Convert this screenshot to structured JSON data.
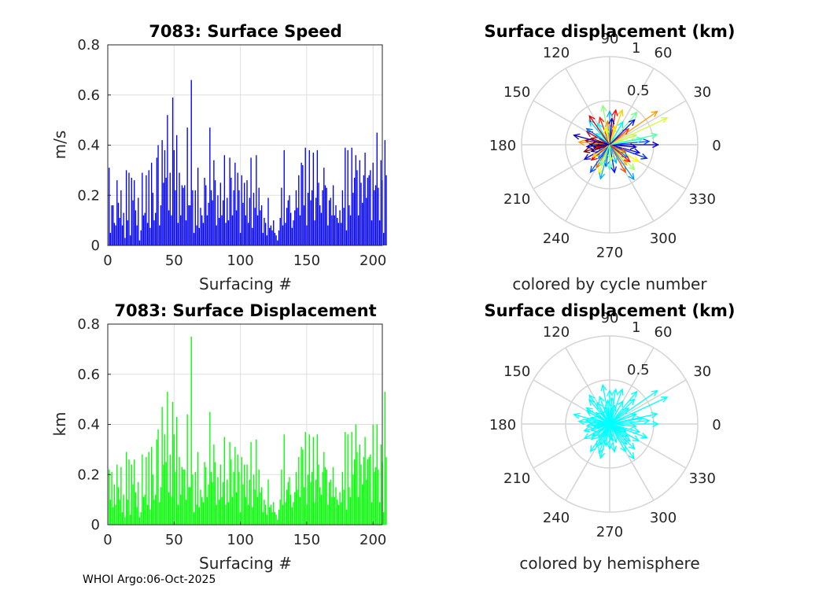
{
  "chart_data": [
    {
      "type": "bar",
      "title": "7083: Surface Speed",
      "xlabel": "Surfacing #",
      "ylabel": "m/s",
      "xlim": [
        0,
        207
      ],
      "ylim": [
        0,
        0.8
      ],
      "xticks": [
        "0",
        "50",
        "100",
        "150",
        "200"
      ],
      "yticks": [
        "0",
        "0.2",
        "0.4",
        "0.6",
        "0.8"
      ],
      "grid": true,
      "color": "#0000ff",
      "values": [
        0.31,
        0.05,
        0.16,
        0.16,
        0.09,
        0.08,
        0.26,
        0.17,
        0.11,
        0.22,
        0.08,
        0.13,
        0.03,
        0.3,
        0.1,
        0.29,
        0.04,
        0.27,
        0.18,
        0.26,
        0.14,
        0.08,
        0.19,
        0.02,
        0.06,
        0.29,
        0.12,
        0.13,
        0.28,
        0.09,
        0.3,
        0.07,
        0.33,
        0.21,
        0.1,
        0.13,
        0.35,
        0.4,
        0.08,
        0.16,
        0.42,
        0.25,
        0.38,
        0.27,
        0.52,
        0.14,
        0.29,
        0.12,
        0.59,
        0.38,
        0.22,
        0.44,
        0.09,
        0.29,
        0.12,
        0.24,
        0.23,
        0.24,
        0.1,
        0.47,
        0.16,
        0.16,
        0.66,
        0.22,
        0.05,
        0.22,
        0.08,
        0.31,
        0.07,
        0.15,
        0.12,
        0.09,
        0.27,
        0.24,
        0.12,
        0.17,
        0.47,
        0.22,
        0.18,
        0.34,
        0.26,
        0.08,
        0.2,
        0.11,
        0.25,
        0.12,
        0.18,
        0.36,
        0.09,
        0.19,
        0.1,
        0.35,
        0.27,
        0.12,
        0.22,
        0.33,
        0.14,
        0.29,
        0.22,
        0.05,
        0.28,
        0.17,
        0.25,
        0.12,
        0.26,
        0.09,
        0.19,
        0.35,
        0.07,
        0.21,
        0.15,
        0.36,
        0.12,
        0.23,
        0.14,
        0.16,
        0.05,
        0.11,
        0.09,
        0.04,
        0.19,
        0.07,
        0.08,
        0.06,
        0.1,
        0.05,
        0.04,
        0.02,
        0.06,
        0.11,
        0.23,
        0.08,
        0.38,
        0.09,
        0.15,
        0.18,
        0.2,
        0.13,
        0.07,
        0.1,
        0.14,
        0.22,
        0.15,
        0.28,
        0.12,
        0.33,
        0.32,
        0.16,
        0.39,
        0.08,
        0.21,
        0.38,
        0.18,
        0.22,
        0.37,
        0.1,
        0.19,
        0.38,
        0.25,
        0.16,
        0.13,
        0.22,
        0.31,
        0.24,
        0.23,
        0.08,
        0.18,
        0.19,
        0.12,
        0.24,
        0.12,
        0.16,
        0.11,
        0.09,
        0.14,
        0.09,
        0.22,
        0.15,
        0.39,
        0.06,
        0.38,
        0.16,
        0.12,
        0.39,
        0.21,
        0.27,
        0.36,
        0.3,
        0.12,
        0.34,
        0.25,
        0.17,
        0.28,
        0.37,
        0.19,
        0.27,
        0.28,
        0.3,
        0.1,
        0.33,
        0.22,
        0.24,
        0.45,
        0.23,
        0.1,
        0.34,
        0.26,
        0.05,
        0.42,
        0.28
      ]
    },
    {
      "type": "bar",
      "title": "7083: Surface Displacement",
      "xlabel": "Surfacing #",
      "ylabel": "km",
      "xlim": [
        0,
        207
      ],
      "ylim": [
        0,
        0.8
      ],
      "xticks": [
        "0",
        "50",
        "100",
        "150",
        "200"
      ],
      "yticks": [
        "0",
        "0.2",
        "0.4",
        "0.6",
        "0.8"
      ],
      "grid": true,
      "color": "#00ff00",
      "values": [
        0.22,
        0.1,
        0.21,
        0.07,
        0.16,
        0.08,
        0.24,
        0.15,
        0.1,
        0.23,
        0.05,
        0.12,
        0.03,
        0.29,
        0.1,
        0.26,
        0.04,
        0.24,
        0.16,
        0.26,
        0.13,
        0.07,
        0.17,
        0.03,
        0.05,
        0.28,
        0.11,
        0.12,
        0.27,
        0.08,
        0.29,
        0.06,
        0.31,
        0.2,
        0.1,
        0.12,
        0.34,
        0.38,
        0.09,
        0.15,
        0.47,
        0.24,
        0.36,
        0.25,
        0.53,
        0.13,
        0.28,
        0.11,
        0.49,
        0.36,
        0.21,
        0.43,
        0.08,
        0.27,
        0.12,
        0.23,
        0.22,
        0.22,
        0.1,
        0.44,
        0.15,
        0.15,
        0.75,
        0.2,
        0.05,
        0.21,
        0.08,
        0.29,
        0.07,
        0.14,
        0.11,
        0.09,
        0.25,
        0.23,
        0.11,
        0.16,
        0.45,
        0.21,
        0.17,
        0.32,
        0.25,
        0.08,
        0.19,
        0.1,
        0.24,
        0.11,
        0.17,
        0.35,
        0.08,
        0.18,
        0.09,
        0.33,
        0.26,
        0.11,
        0.21,
        0.31,
        0.13,
        0.28,
        0.21,
        0.05,
        0.27,
        0.16,
        0.24,
        0.11,
        0.24,
        0.08,
        0.18,
        0.33,
        0.07,
        0.2,
        0.14,
        0.34,
        0.11,
        0.22,
        0.13,
        0.15,
        0.05,
        0.1,
        0.08,
        0.04,
        0.18,
        0.07,
        0.08,
        0.05,
        0.09,
        0.05,
        0.04,
        0.02,
        0.06,
        0.1,
        0.22,
        0.08,
        0.36,
        0.09,
        0.14,
        0.17,
        0.19,
        0.12,
        0.07,
        0.09,
        0.13,
        0.21,
        0.14,
        0.27,
        0.11,
        0.31,
        0.3,
        0.15,
        0.37,
        0.08,
        0.2,
        0.36,
        0.17,
        0.21,
        0.35,
        0.09,
        0.18,
        0.36,
        0.24,
        0.15,
        0.12,
        0.21,
        0.29,
        0.23,
        0.22,
        0.08,
        0.17,
        0.18,
        0.11,
        0.23,
        0.11,
        0.15,
        0.1,
        0.08,
        0.13,
        0.09,
        0.21,
        0.14,
        0.37,
        0.06,
        0.36,
        0.15,
        0.11,
        0.37,
        0.2,
        0.26,
        0.4,
        0.29,
        0.11,
        0.32,
        0.24,
        0.16,
        0.27,
        0.35,
        0.18,
        0.26,
        0.27,
        0.28,
        0.09,
        0.4,
        0.21,
        0.23,
        0.4,
        0.22,
        0.09,
        0.32,
        0.25,
        0.05,
        0.53,
        0.27
      ]
    },
    {
      "type": "polar-compass",
      "title": "Surface displacement (km)",
      "caption": "colored by cycle number",
      "rlim": [
        0,
        1
      ],
      "rticks": [
        "0.5",
        "1"
      ],
      "angle_ticks_deg": [
        "0",
        "30",
        "60",
        "90",
        "120",
        "150",
        "180",
        "210",
        "240",
        "270",
        "300",
        "330"
      ],
      "color_scale": [
        "#00007f",
        "#0000ff",
        "#007fff",
        "#00ffff",
        "#7fff7f",
        "#ffff00",
        "#ff7f00",
        "#ff0000",
        "#7f0000"
      ],
      "arrows": [
        {
          "angle": 25,
          "r": 0.72,
          "cycle": 120
        },
        {
          "angle": 35,
          "r": 0.66,
          "cycle": 150
        },
        {
          "angle": 12,
          "r": 0.55,
          "cycle": 95
        },
        {
          "angle": 70,
          "r": 0.42,
          "cycle": 140
        },
        {
          "angle": 90,
          "r": 0.38,
          "cycle": 60
        },
        {
          "angle": 110,
          "r": 0.33,
          "cycle": 175
        },
        {
          "angle": 130,
          "r": 0.36,
          "cycle": 70
        },
        {
          "angle": 150,
          "r": 0.3,
          "cycle": 190
        },
        {
          "angle": 170,
          "r": 0.28,
          "cycle": 200
        },
        {
          "angle": 185,
          "r": 0.26,
          "cycle": 10
        },
        {
          "angle": 200,
          "r": 0.22,
          "cycle": 5
        },
        {
          "angle": 220,
          "r": 0.27,
          "cycle": 185
        },
        {
          "angle": 240,
          "r": 0.3,
          "cycle": 160
        },
        {
          "angle": 260,
          "r": 0.25,
          "cycle": 45
        },
        {
          "angle": 280,
          "r": 0.32,
          "cycle": 30
        },
        {
          "angle": 300,
          "r": 0.36,
          "cycle": 165
        },
        {
          "angle": 315,
          "r": 0.4,
          "cycle": 110
        },
        {
          "angle": 330,
          "r": 0.38,
          "cycle": 130
        },
        {
          "angle": 345,
          "r": 0.35,
          "cycle": 20
        },
        {
          "angle": 0,
          "r": 0.55,
          "cycle": 15
        },
        {
          "angle": 5,
          "r": 0.45,
          "cycle": 40
        },
        {
          "angle": 50,
          "r": 0.48,
          "cycle": 100
        },
        {
          "angle": 80,
          "r": 0.4,
          "cycle": 180
        },
        {
          "angle": 100,
          "r": 0.45,
          "cycle": 105
        },
        {
          "angle": 120,
          "r": 0.28,
          "cycle": 80
        },
        {
          "angle": 160,
          "r": 0.22,
          "cycle": 195
        },
        {
          "angle": 175,
          "r": 0.35,
          "cycle": 150
        },
        {
          "angle": 195,
          "r": 0.3,
          "cycle": 205
        },
        {
          "angle": 210,
          "r": 0.33,
          "cycle": 25
        },
        {
          "angle": 230,
          "r": 0.2,
          "cycle": 55
        },
        {
          "angle": 250,
          "r": 0.35,
          "cycle": 125
        },
        {
          "angle": 270,
          "r": 0.28,
          "cycle": 90
        },
        {
          "angle": 290,
          "r": 0.22,
          "cycle": 65
        },
        {
          "angle": 310,
          "r": 0.3,
          "cycle": 145
        },
        {
          "angle": 325,
          "r": 0.25,
          "cycle": 50
        },
        {
          "angle": 340,
          "r": 0.45,
          "cycle": 35
        },
        {
          "angle": 355,
          "r": 0.3,
          "cycle": 8
        },
        {
          "angle": 20,
          "r": 0.32,
          "cycle": 115
        },
        {
          "angle": 40,
          "r": 0.28,
          "cycle": 170
        },
        {
          "angle": 60,
          "r": 0.3,
          "cycle": 75
        },
        {
          "angle": 75,
          "r": 0.22,
          "cycle": 135
        },
        {
          "angle": 95,
          "r": 0.27,
          "cycle": 155
        },
        {
          "angle": 140,
          "r": 0.2,
          "cycle": 85
        },
        {
          "angle": 165,
          "r": 0.42,
          "cycle": 12
        },
        {
          "angle": 190,
          "r": 0.18,
          "cycle": 198
        },
        {
          "angle": 215,
          "r": 0.24,
          "cycle": 140
        },
        {
          "angle": 235,
          "r": 0.38,
          "cycle": 42
        },
        {
          "angle": 255,
          "r": 0.4,
          "cycle": 62
        },
        {
          "angle": 275,
          "r": 0.18,
          "cycle": 118
        },
        {
          "angle": 305,
          "r": 0.48,
          "cycle": 58
        },
        {
          "angle": 320,
          "r": 0.3,
          "cycle": 178
        },
        {
          "angle": 335,
          "r": 0.2,
          "cycle": 162
        },
        {
          "angle": 10,
          "r": 0.38,
          "cycle": 88
        },
        {
          "angle": 45,
          "r": 0.4,
          "cycle": 28
        },
        {
          "angle": 85,
          "r": 0.3,
          "cycle": 18
        },
        {
          "angle": 105,
          "r": 0.2,
          "cycle": 128
        },
        {
          "angle": 125,
          "r": 0.4,
          "cycle": 188
        },
        {
          "angle": 145,
          "r": 0.32,
          "cycle": 48
        },
        {
          "angle": 180,
          "r": 0.22,
          "cycle": 2
        },
        {
          "angle": 245,
          "r": 0.26,
          "cycle": 98
        }
      ]
    },
    {
      "type": "polar-compass",
      "title": "Surface displacement (km)",
      "caption": "colored by hemisphere",
      "rlim": [
        0,
        1
      ],
      "rticks": [
        "0.5",
        "1"
      ],
      "angle_ticks_deg": [
        "0",
        "30",
        "60",
        "90",
        "120",
        "150",
        "180",
        "210",
        "240",
        "270",
        "300",
        "330"
      ],
      "color": "#00ffff",
      "arrows": [
        {
          "angle": 25,
          "r": 0.72
        },
        {
          "angle": 35,
          "r": 0.66
        },
        {
          "angle": 12,
          "r": 0.55
        },
        {
          "angle": 70,
          "r": 0.42
        },
        {
          "angle": 90,
          "r": 0.38
        },
        {
          "angle": 110,
          "r": 0.33
        },
        {
          "angle": 130,
          "r": 0.36
        },
        {
          "angle": 150,
          "r": 0.3
        },
        {
          "angle": 170,
          "r": 0.28
        },
        {
          "angle": 185,
          "r": 0.26
        },
        {
          "angle": 200,
          "r": 0.22
        },
        {
          "angle": 220,
          "r": 0.27
        },
        {
          "angle": 240,
          "r": 0.3
        },
        {
          "angle": 260,
          "r": 0.25
        },
        {
          "angle": 280,
          "r": 0.32
        },
        {
          "angle": 300,
          "r": 0.36
        },
        {
          "angle": 315,
          "r": 0.4
        },
        {
          "angle": 330,
          "r": 0.38
        },
        {
          "angle": 345,
          "r": 0.35
        },
        {
          "angle": 0,
          "r": 0.55
        },
        {
          "angle": 5,
          "r": 0.45
        },
        {
          "angle": 50,
          "r": 0.48
        },
        {
          "angle": 80,
          "r": 0.4
        },
        {
          "angle": 100,
          "r": 0.45
        },
        {
          "angle": 120,
          "r": 0.28
        },
        {
          "angle": 160,
          "r": 0.22
        },
        {
          "angle": 175,
          "r": 0.35
        },
        {
          "angle": 195,
          "r": 0.3
        },
        {
          "angle": 210,
          "r": 0.33
        },
        {
          "angle": 230,
          "r": 0.2
        },
        {
          "angle": 250,
          "r": 0.35
        },
        {
          "angle": 270,
          "r": 0.28
        },
        {
          "angle": 290,
          "r": 0.22
        },
        {
          "angle": 310,
          "r": 0.3
        },
        {
          "angle": 325,
          "r": 0.25
        },
        {
          "angle": 340,
          "r": 0.45
        },
        {
          "angle": 355,
          "r": 0.3
        },
        {
          "angle": 20,
          "r": 0.32
        },
        {
          "angle": 40,
          "r": 0.28
        },
        {
          "angle": 60,
          "r": 0.3
        },
        {
          "angle": 75,
          "r": 0.22
        },
        {
          "angle": 95,
          "r": 0.27
        },
        {
          "angle": 140,
          "r": 0.2
        },
        {
          "angle": 165,
          "r": 0.42
        },
        {
          "angle": 190,
          "r": 0.18
        },
        {
          "angle": 215,
          "r": 0.24
        },
        {
          "angle": 235,
          "r": 0.38
        },
        {
          "angle": 255,
          "r": 0.4
        },
        {
          "angle": 275,
          "r": 0.18
        },
        {
          "angle": 305,
          "r": 0.48
        },
        {
          "angle": 320,
          "r": 0.3
        },
        {
          "angle": 335,
          "r": 0.2
        },
        {
          "angle": 10,
          "r": 0.38
        },
        {
          "angle": 45,
          "r": 0.4
        },
        {
          "angle": 85,
          "r": 0.3
        },
        {
          "angle": 105,
          "r": 0.2
        },
        {
          "angle": 125,
          "r": 0.4
        },
        {
          "angle": 145,
          "r": 0.32
        },
        {
          "angle": 180,
          "r": 0.22
        },
        {
          "angle": 245,
          "r": 0.26
        }
      ]
    }
  ],
  "footer": "WHOI Argo:06-Oct-2025"
}
